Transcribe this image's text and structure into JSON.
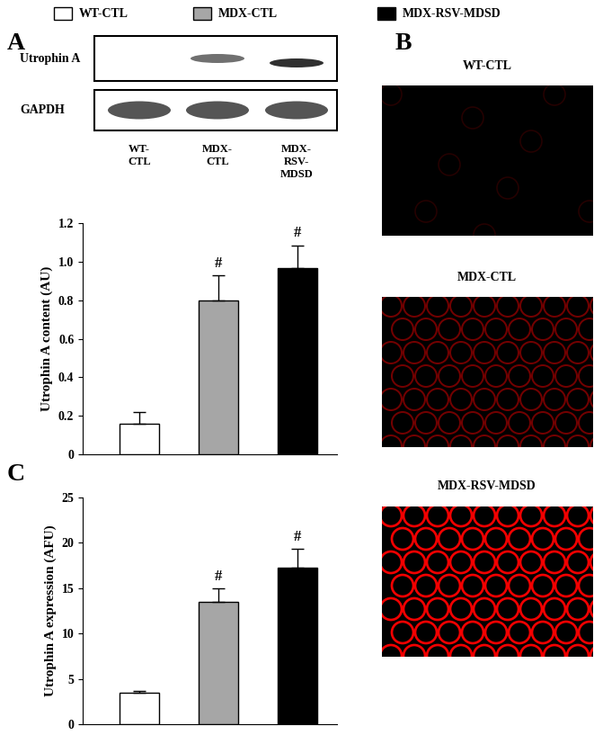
{
  "figure_legend": [
    {
      "name": "WT-CTL",
      "color": "#ffffff"
    },
    {
      "name": "MDX-CTL",
      "color": "#a6a6a6"
    },
    {
      "name": "MDX-RSV-MDSD",
      "color": "#000000"
    }
  ],
  "blot": {
    "panel": "A",
    "rows": [
      "Utrophin A",
      "GAPDH"
    ],
    "lanes": [
      "WT-CTL",
      "MDX-CTL",
      "MDX-RSV-MDSD"
    ]
  },
  "images": {
    "panel": "B",
    "titles": [
      "WT-CTL",
      "MDX-CTL",
      "MDX-RSV-MDSD"
    ]
  },
  "chart_data": [
    {
      "panel": "A",
      "type": "bar",
      "ylabel": "Utrophin A content (AU)",
      "categories": [
        "WT-CTL",
        "MDX-CTL",
        "MDX-RSV-MDSD"
      ],
      "values": [
        0.16,
        0.8,
        0.965
      ],
      "errors": [
        0.06,
        0.13,
        0.12
      ],
      "colors": [
        "#ffffff",
        "#a6a6a6",
        "#000000"
      ],
      "annotations": [
        null,
        "#",
        "#"
      ],
      "ylim": [
        0,
        1.2
      ],
      "yticks": [
        0,
        0.2,
        0.4,
        0.6,
        0.8,
        {
          "value": 1.0,
          "label": "1.0"
        },
        1.2
      ],
      "tick_labels": "y"
    },
    {
      "panel": "C",
      "type": "bar",
      "ylabel": "Utrophin A expression (AFU)",
      "categories": [
        "WT-CTL",
        "MDX-CTL",
        "MDX-RSV-MDSD"
      ],
      "values": [
        3.5,
        13.5,
        17.3
      ],
      "errors": [
        0.15,
        1.5,
        2.0
      ],
      "colors": [
        "#ffffff",
        "#a6a6a6",
        "#000000"
      ],
      "annotations": [
        null,
        "#",
        "#"
      ],
      "ylim": [
        0,
        25
      ],
      "yticks": [
        0,
        5,
        10,
        15,
        20,
        25
      ],
      "tick_labels": "y"
    }
  ]
}
